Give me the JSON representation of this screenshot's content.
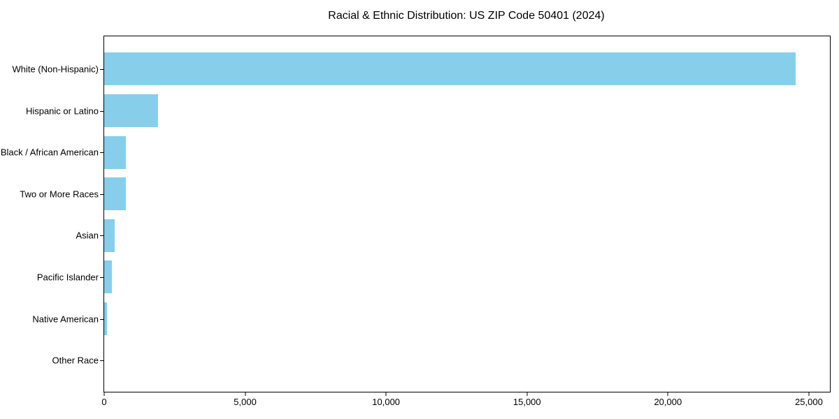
{
  "title": "Racial & Ethnic Distribution: US ZIP Code 50401 (2024)",
  "colors": {
    "bar": "#87CEEB",
    "text": "#000000",
    "spine": "#000000",
    "background": "#ffffff"
  },
  "chart_data": {
    "type": "bar",
    "orientation": "horizontal",
    "title": "Racial & Ethnic Distribution: US ZIP Code 50401 (2024)",
    "categories": [
      "White (Non-Hispanic)",
      "Hispanic or Latino",
      "Black / African American",
      "Two or More Races",
      "Asian",
      "Pacific Islander",
      "Native American",
      "Other Race"
    ],
    "values": [
      24520,
      1910,
      780,
      760,
      365,
      265,
      90,
      0
    ],
    "xlabel": "",
    "ylabel": "",
    "xlim": [
      0,
      25746
    ],
    "xticks": [
      0,
      5000,
      10000,
      15000,
      20000,
      25000
    ],
    "xtick_labels": [
      "0",
      "5,000",
      "10,000",
      "15,000",
      "20,000",
      "25,000"
    ],
    "bar_color": "#87CEEB",
    "grid": false,
    "legend": null
  }
}
